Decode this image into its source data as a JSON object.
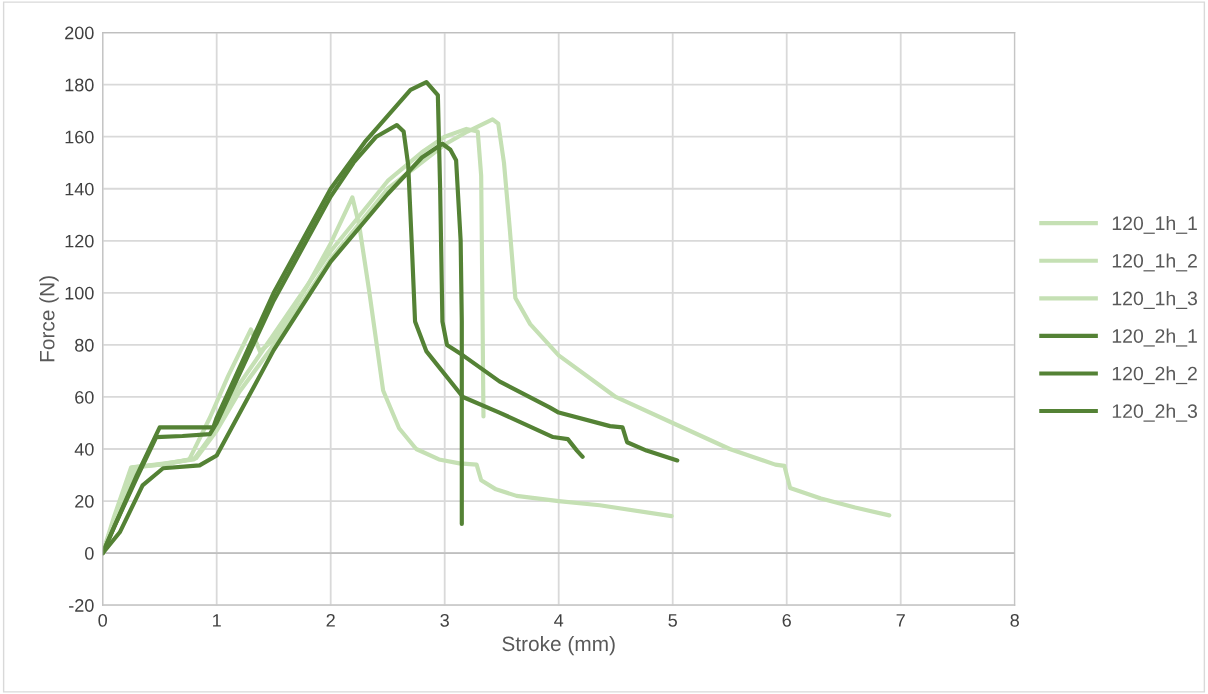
{
  "chart_data": {
    "type": "line",
    "xlabel": "Stroke (mm)",
    "ylabel": "Force (N)",
    "xlim": [
      0,
      8
    ],
    "ylim": [
      -20,
      200
    ],
    "xticks": [
      0,
      1,
      2,
      3,
      4,
      5,
      6,
      7,
      8
    ],
    "yticks": [
      -20,
      0,
      20,
      40,
      60,
      80,
      100,
      120,
      140,
      160,
      180,
      200
    ],
    "grid": true,
    "legend": "right",
    "marker": "none",
    "line_style": "solid",
    "series": [
      {
        "name": "120_1h_1",
        "color": "#c5e0b4",
        "x": [
          0,
          0.1,
          0.25,
          0.5,
          0.76,
          0.94,
          1.1,
          1.3,
          1.38,
          1.5,
          1.8,
          2.0,
          2.19,
          2.25,
          2.34,
          2.46,
          2.6,
          2.75,
          2.95,
          3.13,
          3.28,
          3.32,
          3.45,
          3.63,
          4.0,
          4.36,
          4.99
        ],
        "values": [
          0,
          14,
          33,
          34,
          36,
          52,
          68,
          86,
          77.5,
          82,
          103,
          119,
          136.7,
          126,
          100,
          62.5,
          48,
          40,
          36,
          34.5,
          34,
          28,
          24.5,
          22,
          20,
          18.4,
          14.2
        ]
      },
      {
        "name": "120_1h_2",
        "color": "#c5e0b4",
        "x": [
          0,
          0.12,
          0.27,
          0.55,
          0.8,
          0.95,
          1.2,
          1.5,
          2.0,
          2.5,
          2.8,
          3.0,
          3.19,
          3.29,
          3.32,
          3.33,
          3.34
        ],
        "values": [
          0,
          15,
          33,
          34.5,
          36,
          45,
          65,
          84,
          116,
          143,
          154,
          160,
          163,
          162,
          145,
          100,
          52.5
        ]
      },
      {
        "name": "120_1h_3",
        "color": "#c5e0b4",
        "x": [
          0,
          0.15,
          0.3,
          0.6,
          0.82,
          1.0,
          1.2,
          1.5,
          2.0,
          2.5,
          3.0,
          3.2,
          3.42,
          3.47,
          3.52,
          3.57,
          3.62,
          3.75,
          4.0,
          4.5,
          5.0,
          5.5,
          5.9,
          5.98,
          6.0,
          6.03,
          6.3,
          6.6,
          6.9
        ],
        "values": [
          0,
          16,
          33,
          34.5,
          36.5,
          47,
          62,
          80,
          113,
          140,
          157,
          162,
          166.7,
          165,
          150,
          125,
          98,
          88,
          76,
          60,
          50,
          40,
          34,
          33.5,
          30,
          25,
          21,
          17.5,
          14.5
        ]
      },
      {
        "name": "120_2h_1",
        "color": "#548235",
        "x": [
          0,
          0.1,
          0.3,
          0.5,
          0.7,
          0.97,
          1.0,
          1.5,
          2.0,
          2.3,
          2.5,
          2.7,
          2.84,
          2.94,
          2.96,
          2.98,
          3.02,
          3.16,
          3.48,
          3.92,
          4.0,
          4.45,
          4.56,
          4.6,
          4.77,
          5.04
        ],
        "values": [
          0,
          10,
          30,
          48.3,
          48.3,
          48.3,
          52,
          100,
          140,
          158,
          168,
          178,
          181,
          176,
          140,
          89,
          80,
          76,
          66,
          56,
          54,
          48.8,
          48.3,
          42.6,
          39.4,
          35.6
        ]
      },
      {
        "name": "120_2h_2",
        "color": "#548235",
        "x": [
          0,
          0.1,
          0.3,
          0.47,
          0.7,
          0.94,
          1.0,
          1.5,
          2.0,
          2.2,
          2.4,
          2.58,
          2.64,
          2.68,
          2.71,
          2.74,
          2.84,
          3.16,
          3.48,
          3.95,
          4.08,
          4.16,
          4.21
        ],
        "values": [
          0,
          10,
          29,
          44.6,
          45,
          45.7,
          50,
          97,
          137,
          150,
          160,
          164.5,
          162,
          149,
          120,
          89,
          77.5,
          60,
          54,
          44.6,
          43.8,
          39.4,
          37
        ]
      },
      {
        "name": "120_2h_3",
        "color": "#548235",
        "x": [
          0,
          0.15,
          0.35,
          0.53,
          0.85,
          1.0,
          1.5,
          2.0,
          2.5,
          2.8,
          2.98,
          3.05,
          3.1,
          3.14,
          3.15,
          3.15,
          3.15
        ],
        "values": [
          0,
          8,
          26,
          32.6,
          33.7,
          37.5,
          78,
          112,
          138,
          152,
          157.3,
          155,
          151,
          120,
          89,
          40,
          11.2
        ]
      }
    ]
  }
}
